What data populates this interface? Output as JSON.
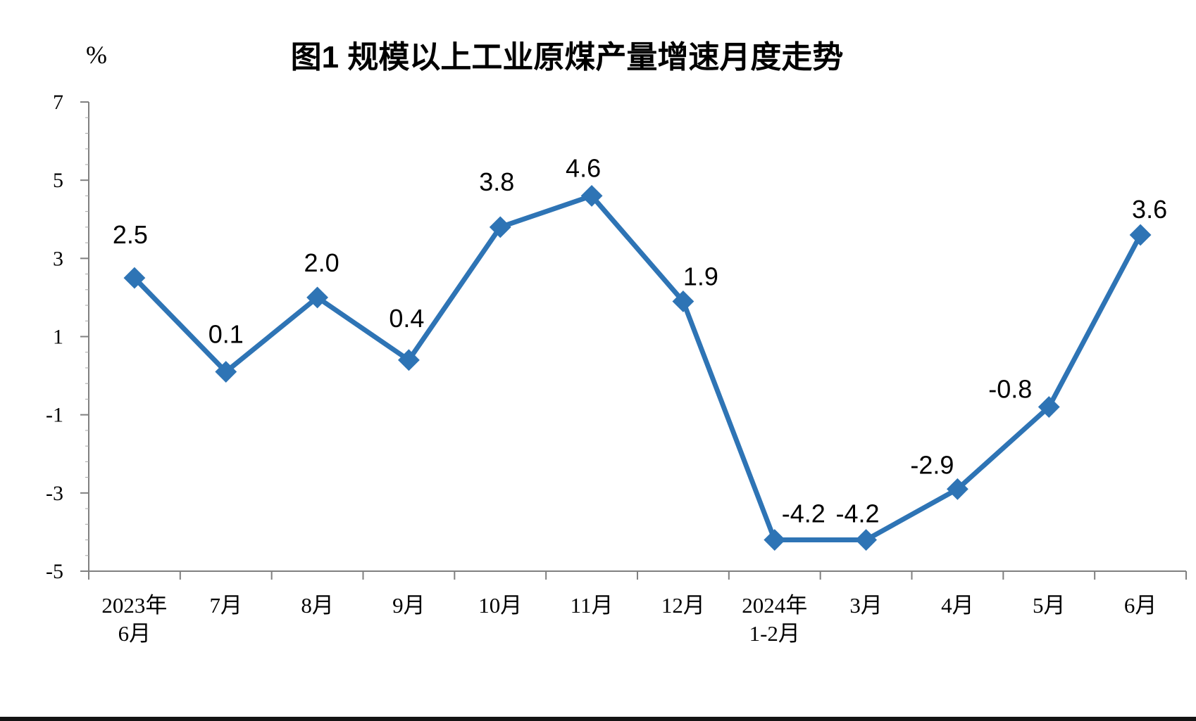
{
  "figure": {
    "title": "图1  规模以上工业原煤产量增速月度走势",
    "unit_label": "%"
  },
  "colors": {
    "line": "#2E74B5",
    "axis": "#808080",
    "minor_tick": "#A6A6A6",
    "text": "#000000",
    "background": "#FFFFFF",
    "bottom_edge": "#141414"
  },
  "chart_data": {
    "type": "line",
    "title": "图1  规模以上工业原煤产量增速月度走势",
    "ylabel": "%",
    "xlabel": "",
    "ylim": [
      -5,
      7
    ],
    "y_ticks": [
      7,
      5,
      3,
      1,
      -1,
      -3,
      -5
    ],
    "grid": false,
    "legend": "none",
    "categories": [
      [
        "2023年",
        "6月"
      ],
      [
        "7月"
      ],
      [
        "8月"
      ],
      [
        "9月"
      ],
      [
        "10月"
      ],
      [
        "11月"
      ],
      [
        "12月"
      ],
      [
        "2024年",
        "1-2月"
      ],
      [
        "3月"
      ],
      [
        "4月"
      ],
      [
        "5月"
      ],
      [
        "6月"
      ]
    ],
    "series": [
      {
        "color": "#2E74B5",
        "marker": "diamond",
        "values": [
          2.5,
          0.1,
          2.0,
          0.4,
          3.8,
          4.6,
          1.9,
          -4.2,
          -4.2,
          -2.9,
          -0.8,
          3.6
        ],
        "data_labels": [
          "2.5",
          "0.1",
          "2.0",
          "0.4",
          "3.8",
          "4.6",
          "1.9",
          "-4.2",
          "-4.2",
          "-2.9",
          "-0.8",
          "3.6"
        ]
      }
    ]
  }
}
